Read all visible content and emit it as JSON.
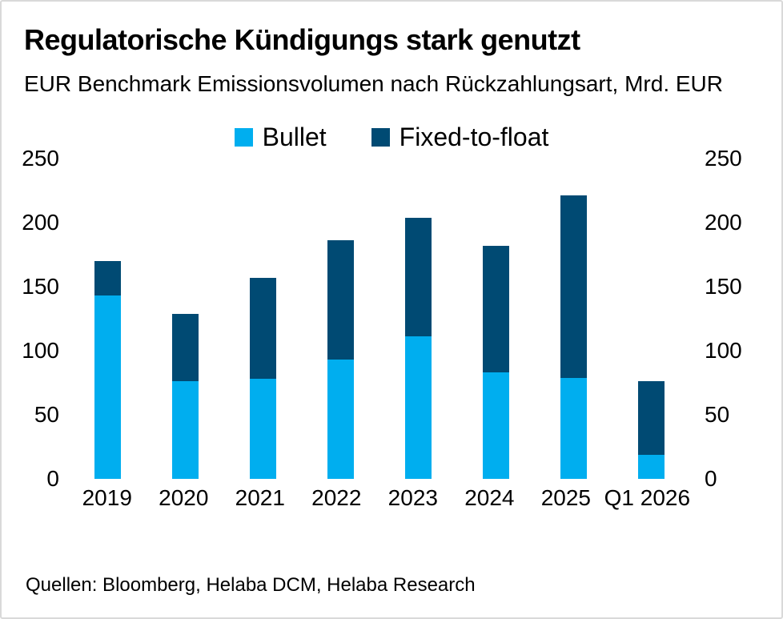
{
  "header": {
    "title": "Regulatorische Kündigungs stark genutzt",
    "subtitle": "EUR Benchmark Emissionsvolumen nach Rückzahlungsart, Mrd. EUR"
  },
  "chart_data": {
    "type": "bar",
    "stacked": true,
    "title": "Regulatorische Kündigungs stark genutzt",
    "subtitle": "EUR Benchmark Emissionsvolumen nach Rückzahlungsart, Mrd. EUR",
    "unit": "Mrd. EUR",
    "categories": [
      "2019",
      "2020",
      "2021",
      "2022",
      "2023",
      "2024",
      "2025",
      "Q1 2026"
    ],
    "series": [
      {
        "name": "Bullet",
        "color": "#00AEEF",
        "values": [
          143,
          76,
          78,
          93,
          111,
          83,
          79,
          19
        ]
      },
      {
        "name": "Fixed-to-float",
        "color": "#004A73",
        "values": [
          27,
          53,
          79,
          93,
          93,
          99,
          142,
          57
        ]
      }
    ],
    "totals": [
      170,
      129,
      157,
      186,
      204,
      182,
      221,
      76
    ],
    "ylim": [
      0,
      250
    ],
    "yticks": [
      0,
      50,
      100,
      150,
      200,
      250
    ],
    "grid": false,
    "legend_position": "top-center",
    "y_axis_sides": [
      "left",
      "right"
    ]
  },
  "footer": {
    "source": "Quellen: Bloomberg, Helaba DCM, Helaba Research"
  },
  "colors": {
    "bullet": "#00AEEF",
    "fixed_to_float": "#004A73",
    "text": "#000000",
    "border": "#D9D9D9",
    "background": "#FFFFFF"
  }
}
